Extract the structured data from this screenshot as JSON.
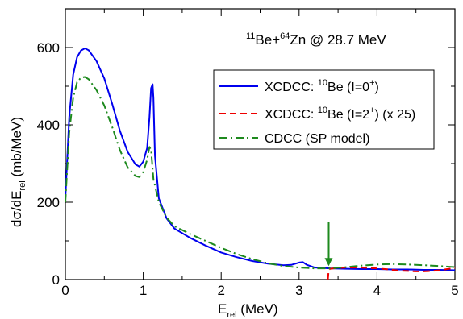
{
  "chart_data": {
    "type": "line",
    "title": "",
    "annotation": {
      "p1_mass": "11",
      "p1_elem": "Be+",
      "p2_mass": "64",
      "p2_elem": "Zn",
      "rest": " @ 28.7 MeV"
    },
    "xlabel": {
      "main": "E",
      "sub": "rel",
      "rest": " (MeV)"
    },
    "ylabel": {
      "main": "dσ/dE",
      "sub": "rel",
      "rest": " (mb/MeV)"
    },
    "xlim": [
      0,
      5
    ],
    "ylim": [
      0,
      700
    ],
    "xticks": [
      "0",
      "1",
      "2",
      "3",
      "4",
      "5"
    ],
    "yticks": [
      "0",
      "200",
      "400",
      "600"
    ],
    "legend": {
      "placement": "right",
      "entries": [
        {
          "a": "XCDCC: ",
          "mass": "10",
          "b": "Be (I=0",
          "sup": "+",
          "c": ")"
        },
        {
          "a": "XCDCC: ",
          "mass": "10",
          "b": "Be (I=2",
          "sup": "+",
          "c": ") (x 25)"
        },
        {
          "a": "CDCC (SP model)",
          "mass": "",
          "b": "",
          "sup": "",
          "c": ""
        }
      ]
    },
    "series": [
      {
        "color": "#0000ee",
        "dash": "solid",
        "x": [
          0.0,
          0.05,
          0.1,
          0.15,
          0.2,
          0.25,
          0.3,
          0.4,
          0.5,
          0.6,
          0.7,
          0.8,
          0.9,
          0.95,
          1.0,
          1.05,
          1.08,
          1.1,
          1.12,
          1.13,
          1.15,
          1.2,
          1.3,
          1.4,
          1.6,
          1.8,
          2.0,
          2.2,
          2.4,
          2.6,
          2.8,
          2.9,
          3.0,
          3.05,
          3.1,
          3.2,
          3.4,
          3.6,
          3.8,
          4.0,
          4.2,
          4.4,
          4.6,
          4.8,
          5.0
        ],
        "y": [
          210,
          420,
          530,
          575,
          592,
          598,
          593,
          565,
          520,
          455,
          385,
          330,
          298,
          292,
          305,
          340,
          420,
          495,
          505,
          470,
          320,
          210,
          158,
          132,
          108,
          88,
          70,
          58,
          48,
          41,
          37,
          38,
          44,
          45,
          38,
          31,
          29,
          28,
          27,
          27,
          26,
          26,
          25,
          25,
          24
        ]
      },
      {
        "color": "#ee0000",
        "dash": "8,5",
        "x": [
          3.37,
          3.38,
          3.4,
          3.5,
          3.6,
          3.7,
          3.8,
          3.9,
          4.0,
          4.1,
          4.2,
          4.3,
          4.4,
          4.5,
          4.6,
          4.7,
          4.8,
          4.9,
          5.0
        ],
        "y": [
          0,
          25,
          28,
          30,
          31,
          31,
          31,
          30,
          29,
          27,
          25,
          23,
          22,
          21,
          21,
          22,
          24,
          27,
          30
        ]
      },
      {
        "color": "#1e8a1e",
        "dash": "10,4,2,4",
        "x": [
          0.0,
          0.05,
          0.1,
          0.15,
          0.2,
          0.25,
          0.3,
          0.4,
          0.5,
          0.6,
          0.7,
          0.8,
          0.9,
          0.95,
          1.0,
          1.05,
          1.08,
          1.1,
          1.13,
          1.2,
          1.3,
          1.4,
          1.6,
          1.8,
          2.0,
          2.2,
          2.4,
          2.6,
          2.8,
          3.0,
          3.2,
          3.4,
          3.6,
          3.8,
          4.0,
          4.2,
          4.4,
          4.6,
          4.8,
          5.0
        ],
        "y": [
          200,
          380,
          470,
          510,
          522,
          524,
          518,
          490,
          450,
          395,
          335,
          290,
          268,
          265,
          278,
          310,
          343,
          335,
          260,
          200,
          160,
          138,
          118,
          100,
          82,
          66,
          53,
          42,
          35,
          31,
          29,
          29,
          32,
          36,
          39,
          40,
          39,
          37,
          35,
          32
        ]
      }
    ],
    "arrow": {
      "x": 3.38,
      "y_from": 150,
      "y_to": 35,
      "color": "#1e8a1e"
    }
  }
}
